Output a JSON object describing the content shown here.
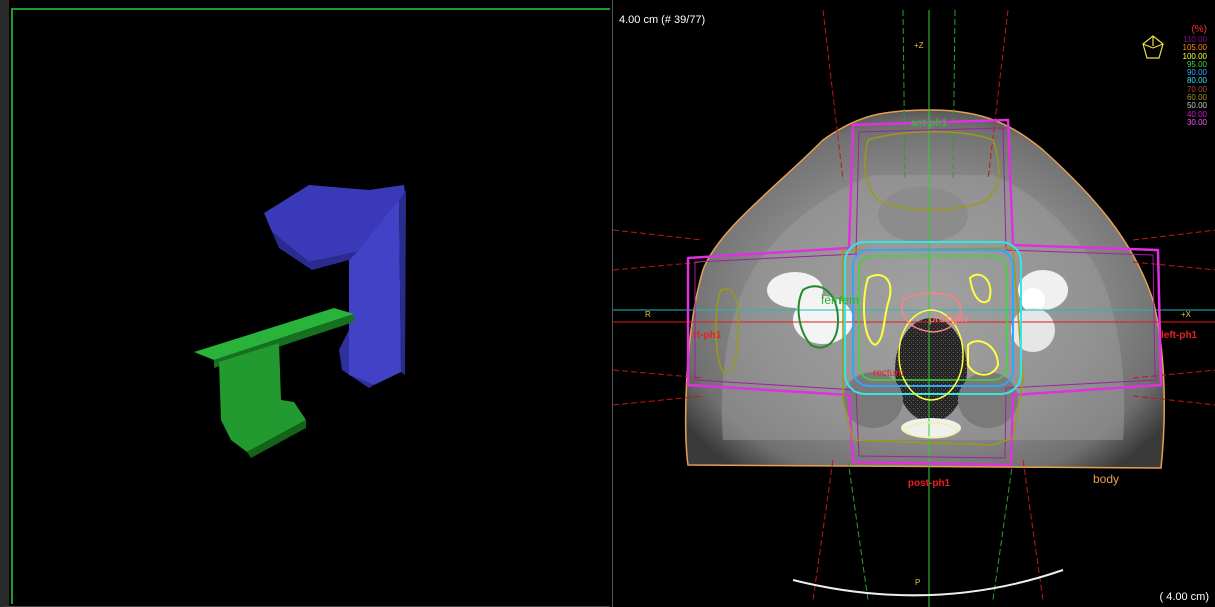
{
  "left_view": {
    "gantry_color": "#3e3ec0",
    "couch_color": "#1f9e2c",
    "border_color": "#1f9a2e"
  },
  "right_view": {
    "slice_info": "4.00 cm (# 39/77)",
    "scale_readout": "( 4.00 cm)",
    "axis_labels": {
      "top": "+Z",
      "bottom": "P",
      "left": "R",
      "right": "+X"
    },
    "beam_labels": {
      "ant": "ant-ph1",
      "post": "post-ph1",
      "left": "left-ph1",
      "right": "rt-ph1"
    },
    "structure_labels": {
      "body": "body",
      "femur_r": "fem",
      "femur_l": "fem",
      "prostate": "prostate",
      "rectum": "rectum"
    },
    "legend": {
      "header": "(%)",
      "icon": "patient-orientation-icon",
      "levels": [
        {
          "label": "110.00",
          "color": "#7d0f8a"
        },
        {
          "label": "105.00",
          "color": "#ff8a00"
        },
        {
          "label": "100.00",
          "color": "#ffff40"
        },
        {
          "label": "95.00",
          "color": "#3dd63d"
        },
        {
          "label": "90.00",
          "color": "#2fa7ff"
        },
        {
          "label": "80.00",
          "color": "#35e6e6"
        },
        {
          "label": "70.00",
          "color": "#b0432a"
        },
        {
          "label": "60.00",
          "color": "#9a9a1a"
        },
        {
          "label": "50.00",
          "color": "#c8c8c8"
        },
        {
          "label": "40.00",
          "color": "#d01fd0"
        },
        {
          "label": "30.00",
          "color": "#ff55ff"
        }
      ]
    }
  }
}
